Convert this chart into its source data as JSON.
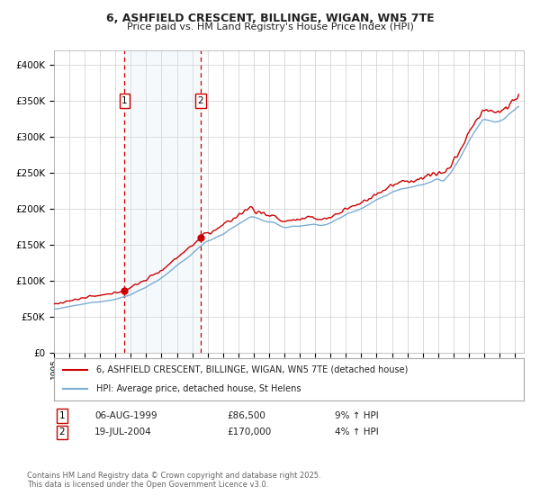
{
  "title1": "6, ASHFIELD CRESCENT, BILLINGE, WIGAN, WN5 7TE",
  "title2": "Price paid vs. HM Land Registry's House Price Index (HPI)",
  "legend1": "6, ASHFIELD CRESCENT, BILLINGE, WIGAN, WN5 7TE (detached house)",
  "legend2": "HPI: Average price, detached house, St Helens",
  "sale1_date_str": "06-AUG-1999",
  "sale1_price": 86500,
  "sale1_hpi": "9% ↑ HPI",
  "sale2_date_str": "19-JUL-2004",
  "sale2_price": 170000,
  "sale2_hpi": "4% ↑ HPI",
  "red_line_color": "#cc0000",
  "blue_line_color": "#7aadd4",
  "shade_color": "#daeaf5",
  "marker_color": "#cc0000",
  "vline_color": "#cc0000",
  "grid_color": "#cccccc",
  "background_color": "#ffffff",
  "footer_text": "Contains HM Land Registry data © Crown copyright and database right 2025.\nThis data is licensed under the Open Government Licence v3.0.",
  "ylim": [
    0,
    420000
  ],
  "yticks": [
    0,
    50000,
    100000,
    150000,
    200000,
    250000,
    300000,
    350000,
    400000
  ]
}
